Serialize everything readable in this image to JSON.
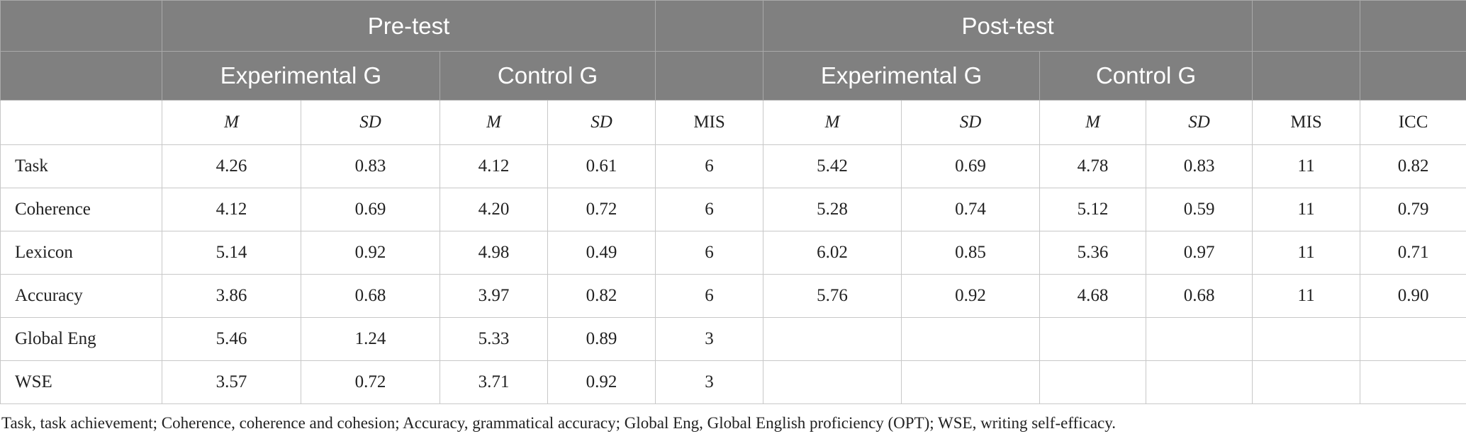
{
  "header": {
    "pre_test": "Pre-test",
    "post_test": "Post-test",
    "experimental_group": "Experimental G",
    "control_group": "Control G"
  },
  "subheaders": {
    "mean": "M",
    "sd": "SD",
    "mis": "MIS",
    "icc": "ICC"
  },
  "rows": [
    {
      "label": "Task",
      "pre_exp_m": "4.26",
      "pre_exp_sd": "0.83",
      "pre_ctl_m": "4.12",
      "pre_ctl_sd": "0.61",
      "pre_mis": "6",
      "post_exp_m": "5.42",
      "post_exp_sd": "0.69",
      "post_ctl_m": "4.78",
      "post_ctl_sd": "0.83",
      "post_mis": "11",
      "icc": "0.82"
    },
    {
      "label": "Coherence",
      "pre_exp_m": "4.12",
      "pre_exp_sd": "0.69",
      "pre_ctl_m": "4.20",
      "pre_ctl_sd": "0.72",
      "pre_mis": "6",
      "post_exp_m": "5.28",
      "post_exp_sd": "0.74",
      "post_ctl_m": "5.12",
      "post_ctl_sd": "0.59",
      "post_mis": "11",
      "icc": "0.79"
    },
    {
      "label": "Lexicon",
      "pre_exp_m": "5.14",
      "pre_exp_sd": "0.92",
      "pre_ctl_m": "4.98",
      "pre_ctl_sd": "0.49",
      "pre_mis": "6",
      "post_exp_m": "6.02",
      "post_exp_sd": "0.85",
      "post_ctl_m": "5.36",
      "post_ctl_sd": "0.97",
      "post_mis": "11",
      "icc": "0.71"
    },
    {
      "label": "Accuracy",
      "pre_exp_m": "3.86",
      "pre_exp_sd": "0.68",
      "pre_ctl_m": "3.97",
      "pre_ctl_sd": "0.82",
      "pre_mis": "6",
      "post_exp_m": "5.76",
      "post_exp_sd": "0.92",
      "post_ctl_m": "4.68",
      "post_ctl_sd": "0.68",
      "post_mis": "11",
      "icc": "0.90"
    },
    {
      "label": "Global Eng",
      "pre_exp_m": "5.46",
      "pre_exp_sd": "1.24",
      "pre_ctl_m": "5.33",
      "pre_ctl_sd": "0.89",
      "pre_mis": "3",
      "post_exp_m": "",
      "post_exp_sd": "",
      "post_ctl_m": "",
      "post_ctl_sd": "",
      "post_mis": "",
      "icc": ""
    },
    {
      "label": "WSE",
      "pre_exp_m": "3.57",
      "pre_exp_sd": "0.72",
      "pre_ctl_m": "3.71",
      "pre_ctl_sd": "0.92",
      "pre_mis": "3",
      "post_exp_m": "",
      "post_exp_sd": "",
      "post_ctl_m": "",
      "post_ctl_sd": "",
      "post_mis": "",
      "icc": ""
    }
  ],
  "footnote": "Task, task achievement; Coherence, coherence and cohesion; Accuracy, grammatical accuracy; Global Eng, Global English proficiency (OPT); WSE, writing self-efficacy.",
  "colors": {
    "header_bg": "#808080",
    "header_text": "#ffffff",
    "grid": "#c8c8c8"
  }
}
